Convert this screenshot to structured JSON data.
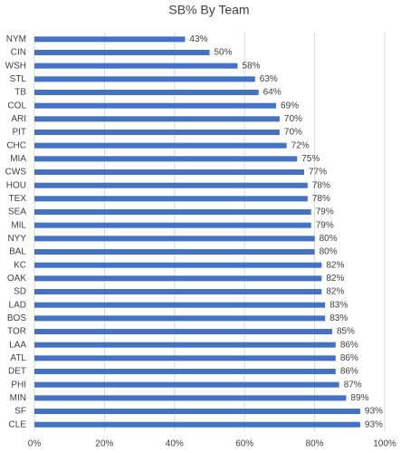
{
  "chart_data": {
    "type": "bar",
    "orientation": "horizontal",
    "title": "SB% By Team",
    "categories": [
      "NYM",
      "CIN",
      "WSH",
      "STL",
      "TB",
      "COL",
      "ARI",
      "PIT",
      "CHC",
      "MIA",
      "CWS",
      "HOU",
      "TEX",
      "SEA",
      "MIL",
      "NYY",
      "BAL",
      "KC",
      "OAK",
      "SD",
      "LAD",
      "BOS",
      "TOR",
      "LAA",
      "ATL",
      "DET",
      "PHI",
      "MIN",
      "SF",
      "CLE"
    ],
    "values": [
      43,
      50,
      58,
      63,
      64,
      69,
      70,
      70,
      72,
      75,
      77,
      78,
      78,
      79,
      79,
      80,
      80,
      82,
      82,
      82,
      83,
      83,
      85,
      86,
      86,
      86,
      87,
      89,
      93,
      93
    ],
    "value_labels": [
      "43%",
      "50%",
      "58%",
      "63%",
      "64%",
      "69%",
      "70%",
      "70%",
      "72%",
      "75%",
      "77%",
      "78%",
      "78%",
      "79%",
      "79%",
      "80%",
      "80%",
      "82%",
      "82%",
      "82%",
      "83%",
      "83%",
      "85%",
      "86%",
      "86%",
      "86%",
      "87%",
      "89%",
      "93%",
      "93%"
    ],
    "color": "#4472c4",
    "xlim": [
      0,
      100
    ],
    "xticks": [
      {
        "value": 0,
        "label": "0%"
      },
      {
        "value": 20,
        "label": "20%"
      },
      {
        "value": 40,
        "label": "40%"
      },
      {
        "value": 60,
        "label": "60%"
      },
      {
        "value": 80,
        "label": "80%"
      },
      {
        "value": 100,
        "label": "100%"
      }
    ],
    "grid": true
  }
}
